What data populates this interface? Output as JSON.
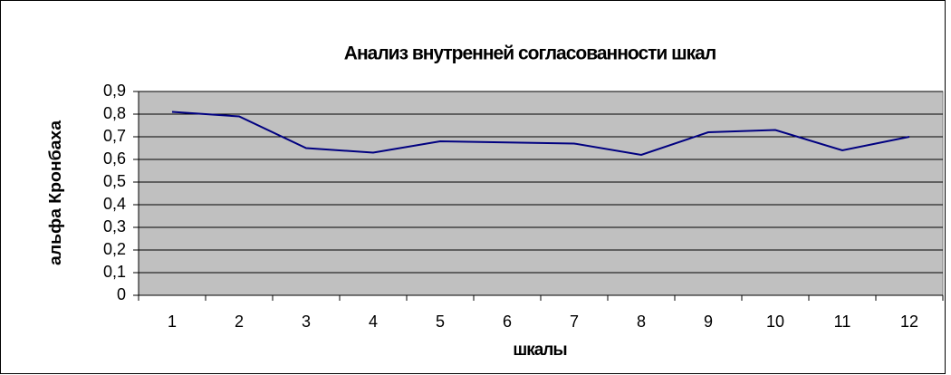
{
  "chart_data": {
    "type": "line",
    "title": "Анализ внутренней согласованности шкал",
    "xlabel": "шкалы",
    "ylabel": "альфа Кронбаха",
    "categories": [
      "1",
      "2",
      "3",
      "4",
      "5",
      "6",
      "7",
      "8",
      "9",
      "10",
      "11",
      "12"
    ],
    "series": [
      {
        "name": "альфа Кронбаха",
        "color": "#000080",
        "values": [
          0.81,
          0.79,
          0.65,
          0.63,
          0.68,
          0.675,
          0.67,
          0.62,
          0.72,
          0.73,
          0.64,
          0.7
        ]
      }
    ],
    "ylim": [
      0,
      0.9
    ],
    "yticks": [
      0,
      {
        "value": 0.1,
        "label": "0,1"
      },
      {
        "value": 0.2,
        "label": "0,2"
      },
      {
        "value": 0.3,
        "label": "0,3"
      },
      {
        "value": 0.4,
        "label": "0,4"
      },
      {
        "value": 0.5,
        "label": "0,5"
      },
      {
        "value": 0.6,
        "label": "0,6"
      },
      {
        "value": 0.7,
        "label": "0,7"
      },
      {
        "value": 0.8,
        "label": "0,8"
      },
      {
        "value": 0.9,
        "label": "0,9"
      }
    ],
    "grid": true
  }
}
